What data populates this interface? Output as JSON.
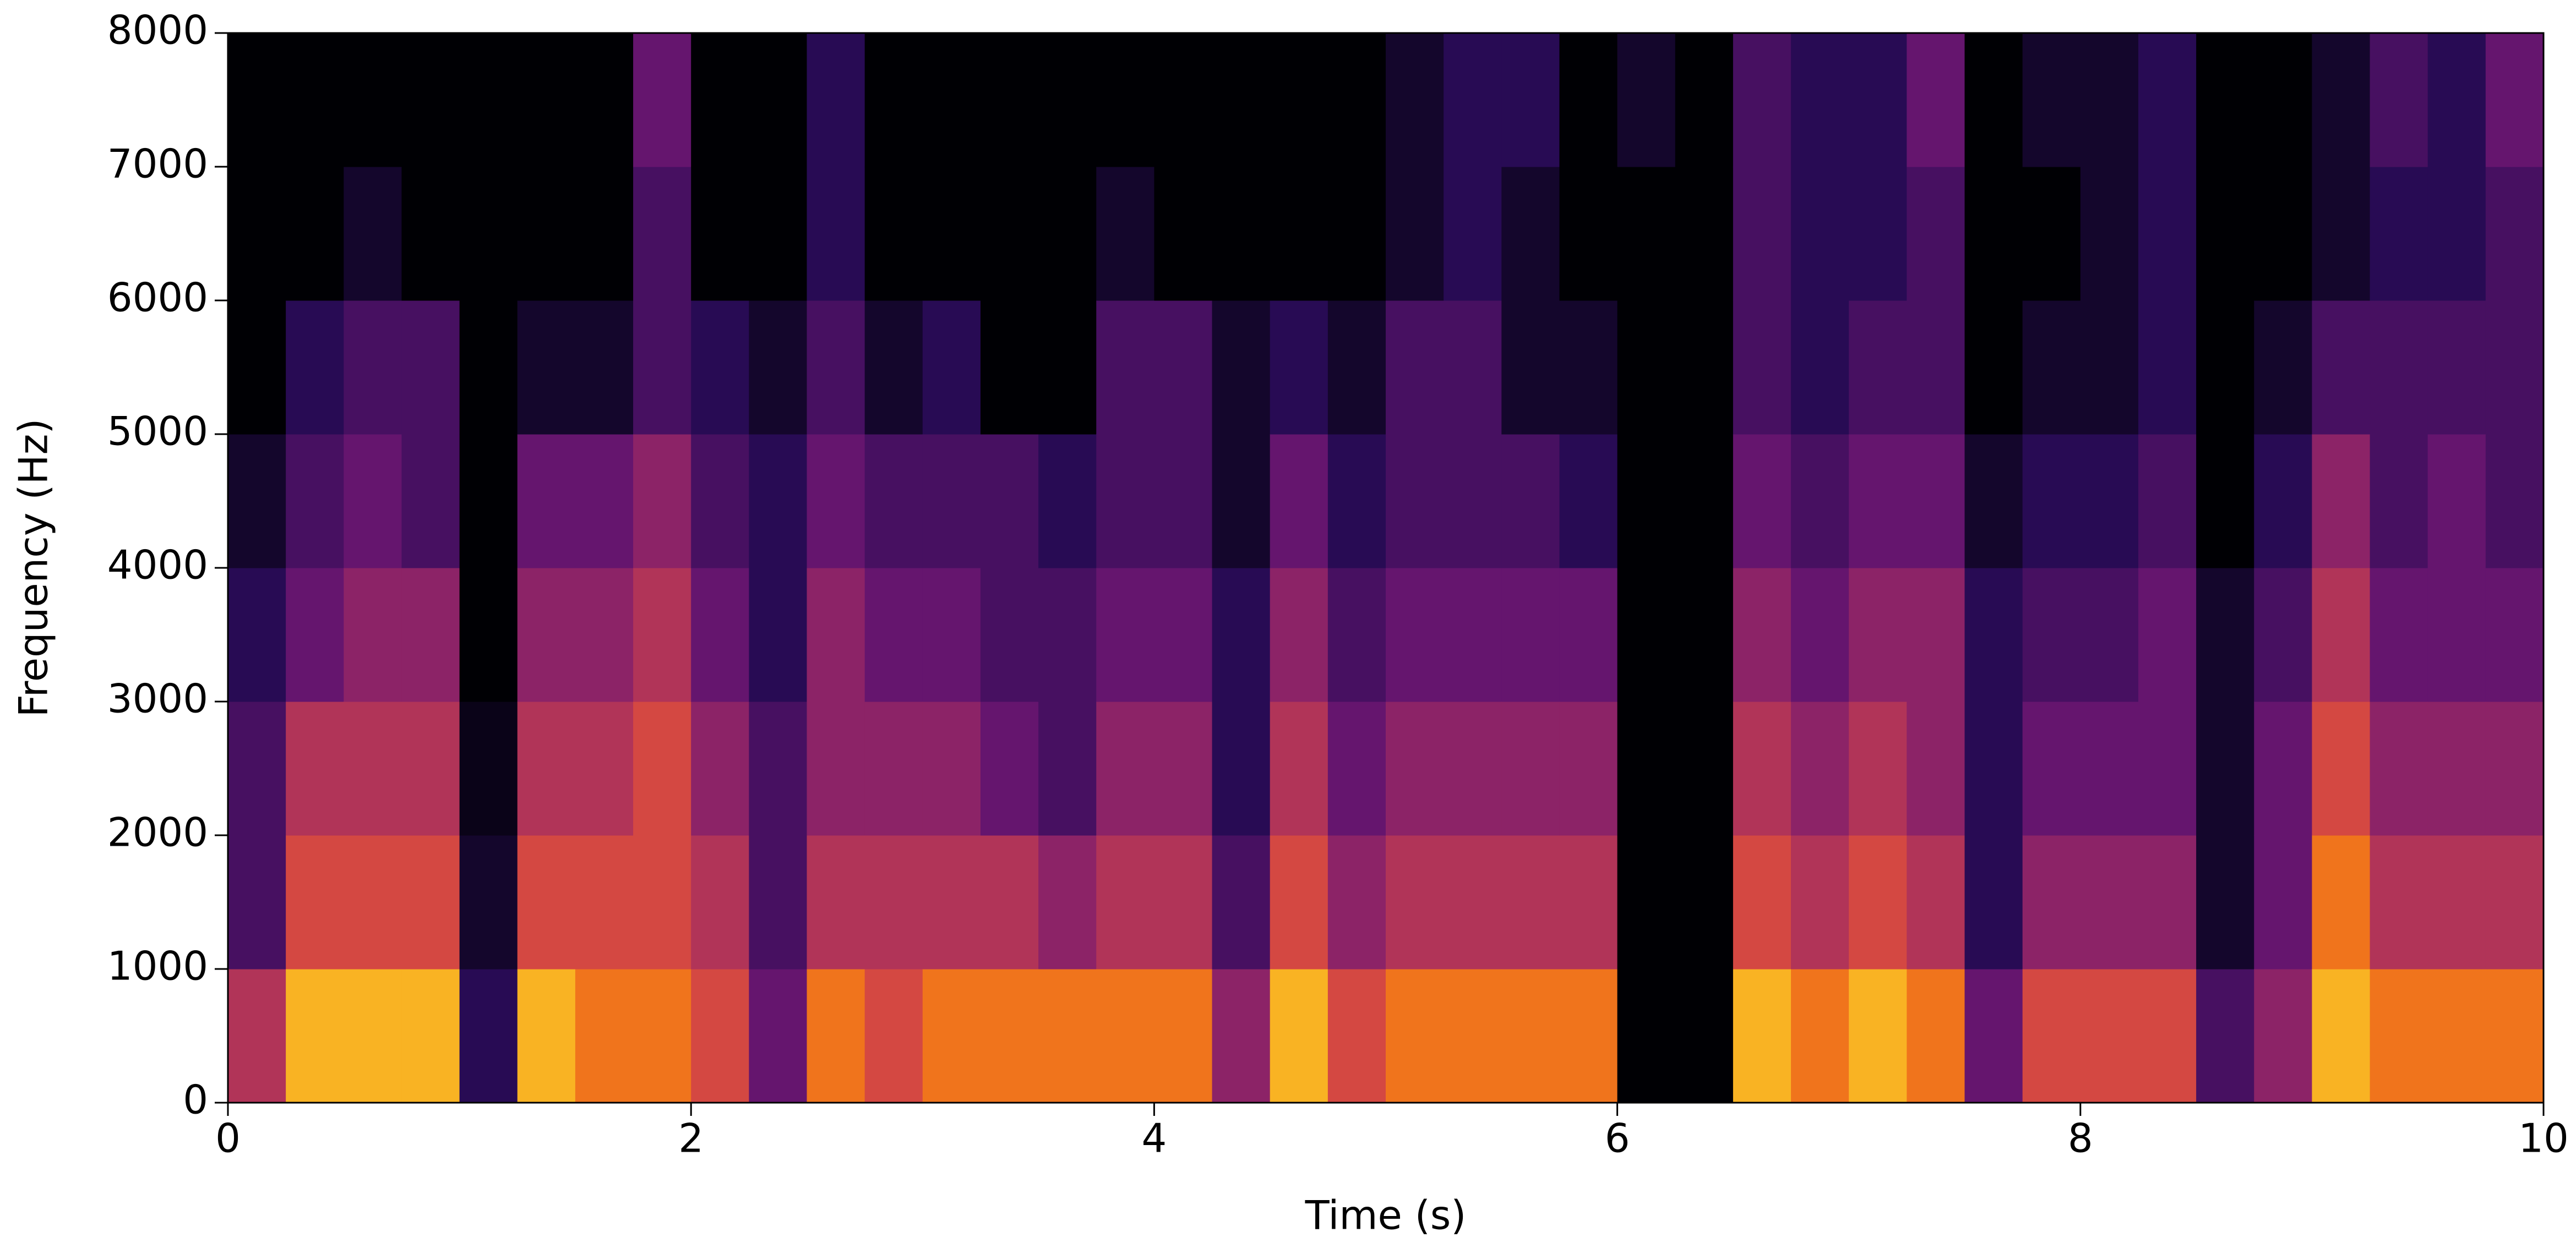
{
  "chart_data": {
    "type": "spectrogram",
    "xlabel": "Time (s)",
    "ylabel": "Frequency (Hz)",
    "colormap": "inferno",
    "xlim": [
      0,
      10
    ],
    "xticks": [
      0,
      2,
      4,
      6,
      8,
      10
    ],
    "ylim": [
      0,
      8000
    ],
    "yticks": [
      0,
      1000,
      2000,
      3000,
      4000,
      5000,
      6000,
      7000,
      8000
    ],
    "time_bins": [
      0,
      0.25,
      0.5,
      0.75,
      1,
      1.25,
      1.5,
      1.75,
      2,
      2.25,
      2.5,
      2.75,
      3,
      3.25,
      3.5,
      3.75,
      4,
      4.25,
      4.5,
      4.75,
      5,
      5.25,
      5.5,
      5.75,
      6,
      6.25,
      6.5,
      6.75,
      7,
      7.25,
      7.5,
      7.75,
      8,
      8.25,
      8.5,
      8.75,
      9,
      9.25,
      9.5,
      9.75,
      10
    ],
    "freq_bins": [
      0,
      1000,
      2000,
      3000,
      4000,
      5000,
      6000,
      7000,
      8000
    ],
    "values": [
      [
        0.6,
        0.3,
        0.3,
        0.2,
        0.1,
        0,
        0,
        0
      ],
      [
        0.9,
        0.7,
        0.6,
        0.4,
        0.3,
        0.2,
        0,
        0
      ],
      [
        0.9,
        0.7,
        0.6,
        0.5,
        0.4,
        0.3,
        0.1,
        0
      ],
      [
        0.9,
        0.7,
        0.6,
        0.5,
        0.3,
        0.3,
        0,
        0
      ],
      [
        0.2,
        0.1,
        0.05,
        0,
        0,
        0,
        0,
        0
      ],
      [
        0.9,
        0.7,
        0.6,
        0.5,
        0.4,
        0.1,
        0,
        0
      ],
      [
        0.8,
        0.7,
        0.6,
        0.5,
        0.4,
        0.1,
        0,
        0
      ],
      [
        0.8,
        0.7,
        0.7,
        0.6,
        0.5,
        0.3,
        0.3,
        0.4
      ],
      [
        0.7,
        0.6,
        0.5,
        0.4,
        0.3,
        0.2,
        0,
        0
      ],
      [
        0.4,
        0.3,
        0.3,
        0.2,
        0.2,
        0.1,
        0,
        0
      ],
      [
        0.8,
        0.6,
        0.5,
        0.5,
        0.4,
        0.3,
        0.2,
        0.2
      ],
      [
        0.7,
        0.6,
        0.5,
        0.4,
        0.3,
        0.1,
        0,
        0
      ],
      [
        0.8,
        0.6,
        0.5,
        0.4,
        0.3,
        0.2,
        0,
        0
      ],
      [
        0.8,
        0.6,
        0.4,
        0.3,
        0.3,
        0,
        0,
        0
      ],
      [
        0.8,
        0.5,
        0.3,
        0.3,
        0.2,
        0,
        0,
        0
      ],
      [
        0.8,
        0.6,
        0.5,
        0.4,
        0.3,
        0.3,
        0.1,
        0
      ],
      [
        0.8,
        0.6,
        0.5,
        0.4,
        0.3,
        0.3,
        0,
        0
      ],
      [
        0.5,
        0.3,
        0.2,
        0.2,
        0.1,
        0.1,
        0,
        0
      ],
      [
        0.9,
        0.7,
        0.6,
        0.5,
        0.4,
        0.2,
        0,
        0
      ],
      [
        0.7,
        0.5,
        0.4,
        0.3,
        0.2,
        0.1,
        0,
        0
      ],
      [
        0.8,
        0.6,
        0.5,
        0.4,
        0.3,
        0.3,
        0.1,
        0.1
      ],
      [
        0.8,
        0.6,
        0.5,
        0.4,
        0.3,
        0.3,
        0.2,
        0.2
      ],
      [
        0.8,
        0.6,
        0.5,
        0.4,
        0.3,
        0.1,
        0.1,
        0.2
      ],
      [
        0.8,
        0.6,
        0.5,
        0.4,
        0.2,
        0.1,
        0,
        0
      ],
      [
        0,
        0,
        0,
        0,
        0,
        0,
        0,
        0.1
      ],
      [
        0,
        0,
        0,
        0,
        0,
        0,
        0,
        0
      ],
      [
        0.9,
        0.7,
        0.6,
        0.5,
        0.4,
        0.3,
        0.3,
        0.3
      ],
      [
        0.8,
        0.6,
        0.5,
        0.4,
        0.3,
        0.2,
        0.2,
        0.2
      ],
      [
        0.9,
        0.7,
        0.6,
        0.5,
        0.4,
        0.3,
        0.2,
        0.2
      ],
      [
        0.8,
        0.6,
        0.5,
        0.5,
        0.4,
        0.3,
        0.3,
        0.4
      ],
      [
        0.4,
        0.2,
        0.2,
        0.2,
        0.1,
        0,
        0,
        0
      ],
      [
        0.7,
        0.5,
        0.4,
        0.3,
        0.2,
        0.1,
        0,
        0.1
      ],
      [
        0.7,
        0.5,
        0.4,
        0.3,
        0.2,
        0.1,
        0.1,
        0.1
      ],
      [
        0.7,
        0.5,
        0.4,
        0.4,
        0.3,
        0.2,
        0.2,
        0.2
      ],
      [
        0.3,
        0.1,
        0.1,
        0.1,
        0,
        0,
        0,
        0
      ],
      [
        0.5,
        0.4,
        0.4,
        0.3,
        0.2,
        0.1,
        0,
        0
      ],
      [
        0.9,
        0.8,
        0.7,
        0.6,
        0.5,
        0.3,
        0.1,
        0.1
      ],
      [
        0.8,
        0.6,
        0.5,
        0.4,
        0.3,
        0.3,
        0.2,
        0.3
      ],
      [
        0.8,
        0.6,
        0.5,
        0.4,
        0.4,
        0.3,
        0.2,
        0.2
      ],
      [
        0.8,
        0.6,
        0.5,
        0.4,
        0.3,
        0.3,
        0.3,
        0.4
      ]
    ]
  }
}
